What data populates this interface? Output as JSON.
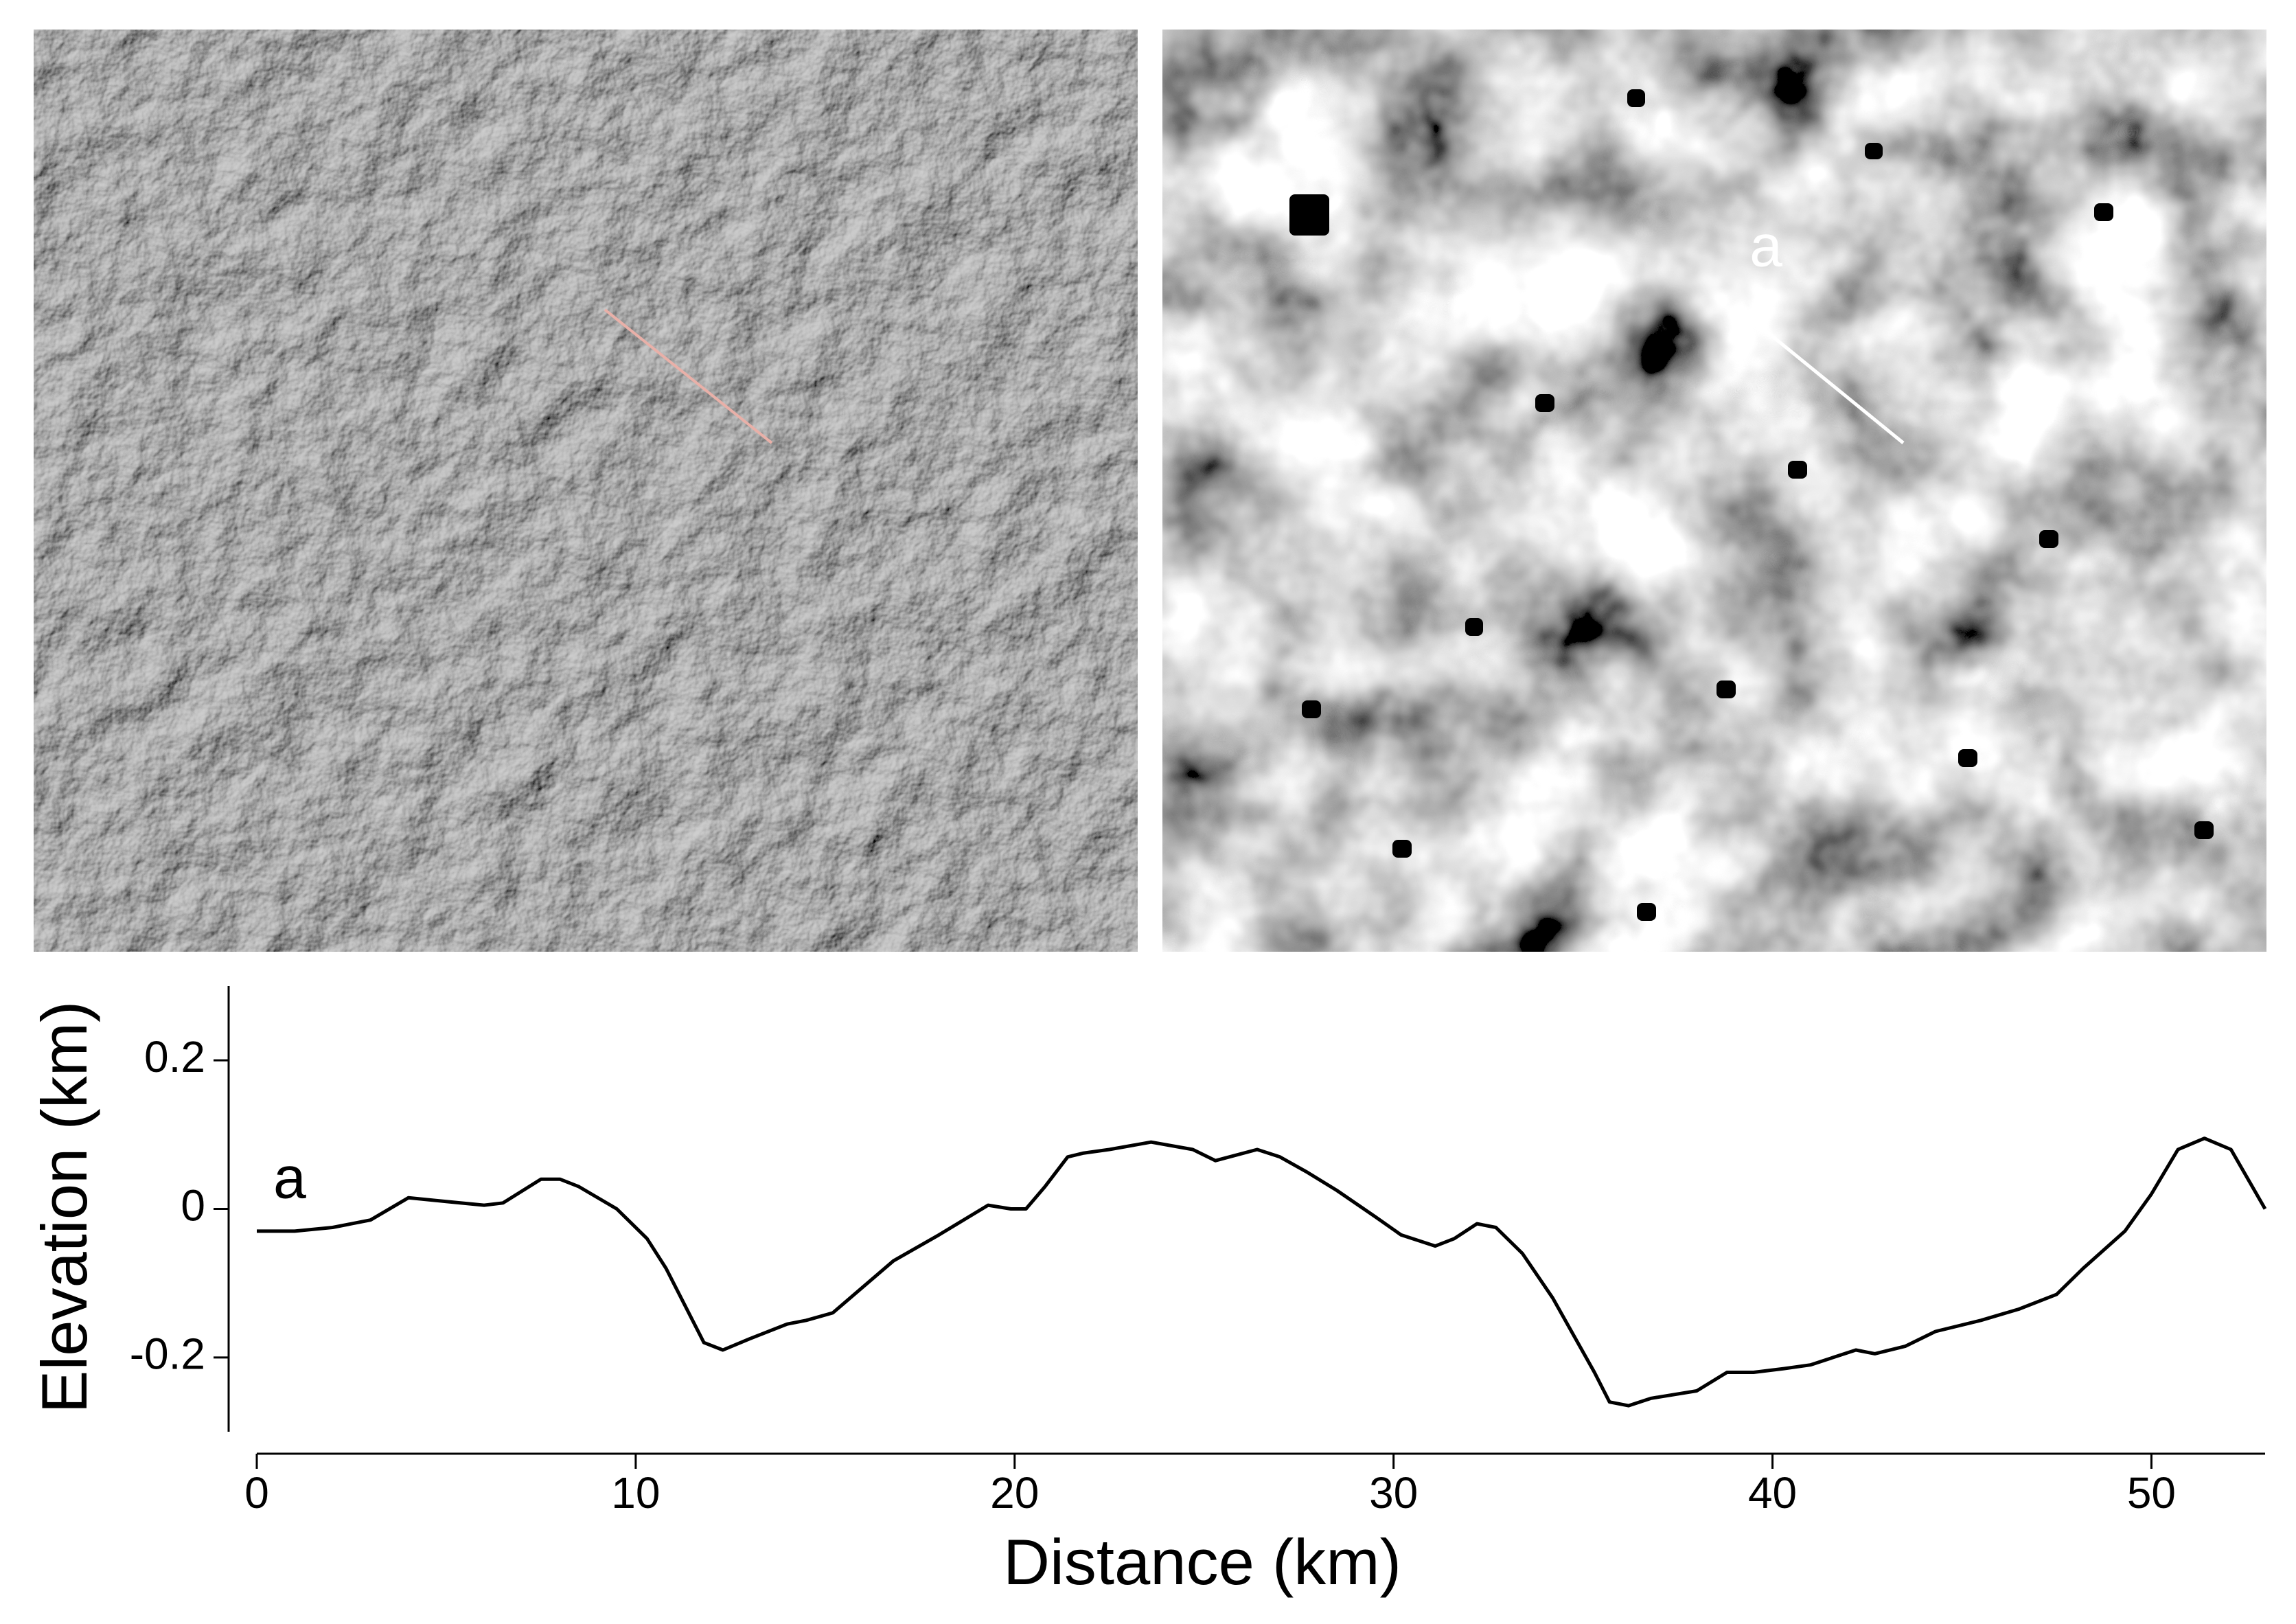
{
  "chart_data": {
    "type": "line",
    "annotation": "a",
    "x_label": "Distance (km)",
    "y_label": "Elevation (km)",
    "color": "#000000",
    "x": [
      0,
      1,
      2,
      3,
      4,
      5,
      6,
      6.5,
      7.5,
      8,
      8.5,
      9.5,
      10.3,
      10.8,
      11.8,
      12.3,
      13,
      14,
      14.5,
      15.2,
      16.8,
      18,
      19.3,
      19.9,
      20.3,
      20.8,
      21.4,
      21.8,
      22.5,
      23.6,
      24.7,
      25.3,
      26.4,
      27,
      27.7,
      28.5,
      29.5,
      30.2,
      31.1,
      31.6,
      32.2,
      32.7,
      33.4,
      34.2,
      35.3,
      35.7,
      36.2,
      36.8,
      38,
      38.8,
      39.5,
      40.3,
      41,
      42.2,
      42.7,
      43.5,
      44.3,
      45.5,
      46.5,
      47.5,
      48.2,
      49.3,
      50,
      50.7,
      51.4,
      52.1,
      53
    ],
    "values": [
      -0.03,
      -0.03,
      -0.025,
      -0.015,
      0.015,
      0.01,
      0.005,
      0.008,
      0.04,
      0.04,
      0.03,
      0.0,
      -0.04,
      -0.08,
      -0.18,
      -0.19,
      -0.175,
      -0.155,
      -0.15,
      -0.14,
      -0.07,
      -0.035,
      0.005,
      0.0,
      0.0,
      0.03,
      0.07,
      0.075,
      0.08,
      0.09,
      0.08,
      0.065,
      0.08,
      0.07,
      0.05,
      0.025,
      -0.01,
      -0.035,
      -0.05,
      -0.04,
      -0.02,
      -0.025,
      -0.06,
      -0.12,
      -0.22,
      -0.26,
      -0.265,
      -0.255,
      -0.245,
      -0.22,
      -0.22,
      -0.215,
      -0.21,
      -0.19,
      -0.195,
      -0.185,
      -0.165,
      -0.15,
      -0.135,
      -0.115,
      -0.08,
      -0.03,
      0.02,
      0.08,
      0.095,
      0.08,
      0.0
    ],
    "xlim": [
      0,
      53
    ],
    "ylim": [
      -0.3,
      0.3
    ],
    "xticks": [
      0,
      10,
      20,
      30,
      40,
      50
    ],
    "yticks": [
      -0.2,
      0,
      0.2
    ]
  }
}
